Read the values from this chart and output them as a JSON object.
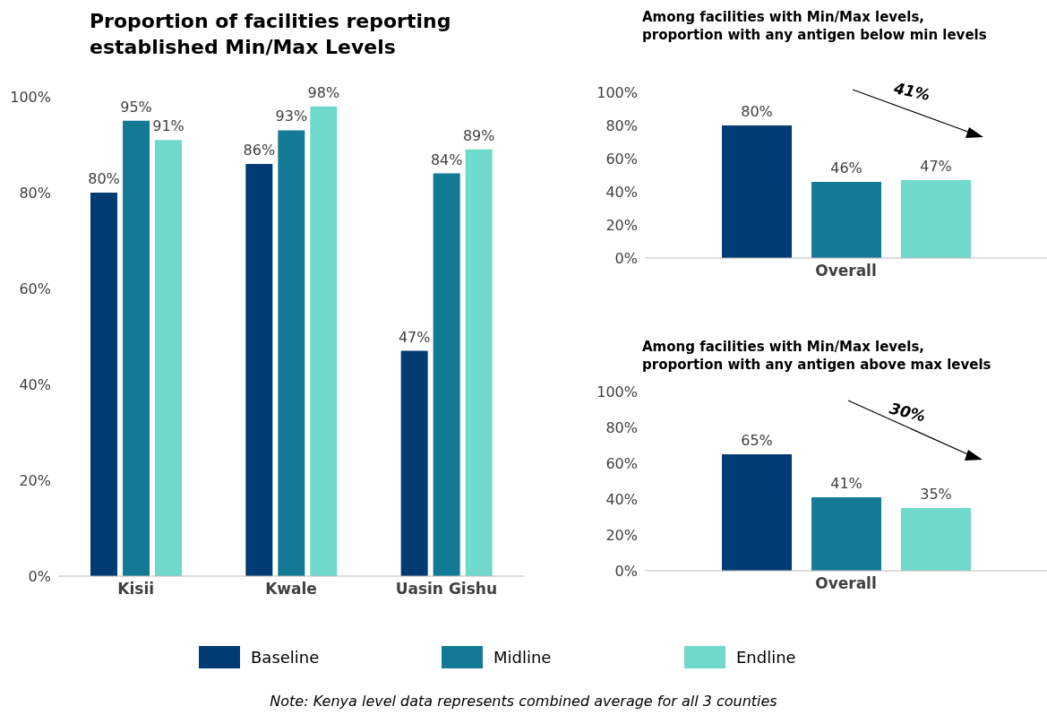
{
  "chart_data": [
    {
      "type": "bar",
      "title": "Proportion of facilities reporting\nestablished Min/Max Levels",
      "categories": [
        "Kisii",
        "Kwale",
        "Uasin Gishu"
      ],
      "series": [
        {
          "name": "Baseline",
          "color": "#003b73",
          "values": [
            80,
            86,
            47
          ],
          "value_labels": [
            "80%",
            "86%",
            "47%"
          ]
        },
        {
          "name": "Midline",
          "color": "#137a95",
          "values": [
            95,
            93,
            84
          ],
          "value_labels": [
            "95%",
            "93%",
            "84%"
          ]
        },
        {
          "name": "Endline",
          "color": "#6fd9cc",
          "values": [
            91,
            98,
            89
          ],
          "value_labels": [
            "91%",
            "98%",
            "89%"
          ]
        }
      ],
      "ylim": [
        0,
        100
      ],
      "yticks": [
        {
          "value": 0,
          "label": "0%"
        },
        {
          "value": 20,
          "label": "20%"
        },
        {
          "value": 40,
          "label": "40%"
        },
        {
          "value": 60,
          "label": "60%"
        },
        {
          "value": 80,
          "label": "80%"
        },
        {
          "value": 100,
          "label": "100%"
        }
      ],
      "grid": false,
      "legend": "bottom",
      "annotations": [
        "Note: Kenya level data represents combined average for all 3 counties"
      ]
    },
    {
      "type": "bar",
      "title": "Among facilities with Min/Max levels,\nproportion with any antigen below min levels",
      "categories": [
        "Overall"
      ],
      "series": [
        {
          "color": "#003b73",
          "values": [
            80
          ],
          "value_labels": [
            "80%"
          ]
        },
        {
          "color": "#137a95",
          "values": [
            46
          ],
          "value_labels": [
            "46%"
          ]
        },
        {
          "color": "#6fd9cc",
          "values": [
            47
          ],
          "value_labels": [
            "47%"
          ]
        }
      ],
      "ylim": [
        0,
        100
      ],
      "yticks": [
        {
          "value": 0,
          "label": "0%"
        },
        {
          "value": 20,
          "label": "20%"
        },
        {
          "value": 40,
          "label": "40%"
        },
        {
          "value": 60,
          "label": "60%"
        },
        {
          "value": 80,
          "label": "80%"
        },
        {
          "value": 100,
          "label": "100%"
        }
      ],
      "grid": false,
      "annotations": [
        "41%"
      ]
    },
    {
      "type": "bar",
      "title": "Among facilities with Min/Max levels,\nproportion with any antigen above max levels",
      "categories": [
        "Overall"
      ],
      "series": [
        {
          "color": "#003b73",
          "values": [
            65
          ],
          "value_labels": [
            "65%"
          ]
        },
        {
          "color": "#137a95",
          "values": [
            41
          ],
          "value_labels": [
            "41%"
          ]
        },
        {
          "color": "#6fd9cc",
          "values": [
            35
          ],
          "value_labels": [
            "35%"
          ]
        }
      ],
      "ylim": [
        0,
        100
      ],
      "yticks": [
        {
          "value": 0,
          "label": "0%"
        },
        {
          "value": 20,
          "label": "20%"
        },
        {
          "value": 40,
          "label": "40%"
        },
        {
          "value": 60,
          "label": "60%"
        },
        {
          "value": 80,
          "label": "80%"
        },
        {
          "value": 100,
          "label": "100%"
        }
      ],
      "grid": false,
      "annotations": [
        "30%"
      ]
    }
  ]
}
